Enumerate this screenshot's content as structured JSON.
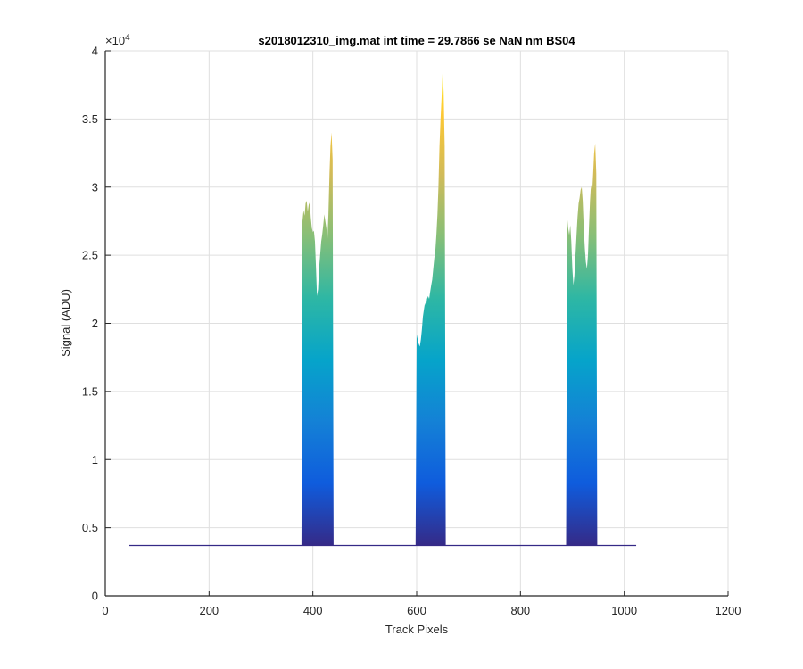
{
  "chart_data": {
    "type": "area",
    "title": "s2018012310_img.mat int time = 29.7866 se  NaN nm BS04",
    "xlabel": "Track Pixels",
    "ylabel": "Signal (ADU)",
    "xlim": [
      0,
      1200
    ],
    "ylim": [
      0,
      40000
    ],
    "x_ticks": [
      0,
      200,
      400,
      600,
      800,
      1000,
      1200
    ],
    "x_tick_labels": [
      "0",
      "200",
      "400",
      "600",
      "800",
      "1000",
      "1200"
    ],
    "y_ticks": [
      0,
      5000,
      10000,
      15000,
      20000,
      25000,
      30000,
      35000,
      40000
    ],
    "y_tick_labels": [
      "0",
      "0.5",
      "1",
      "1.5",
      "2",
      "2.5",
      "3",
      "3.5",
      "4"
    ],
    "y_exponent_label": "×10",
    "y_exponent_power": "4",
    "grid": true,
    "colormap": [
      "#352a87",
      "#0f5cdd",
      "#1481d6",
      "#06a4ca",
      "#2eb7a4",
      "#87bf77",
      "#d1bb59",
      "#fec832",
      "#f9fb0e"
    ],
    "baseline": 3700,
    "x_end": 1023,
    "peaks": [
      {
        "x": [
          378,
          380,
          382,
          384,
          386,
          388,
          390,
          392,
          394,
          396,
          398,
          400,
          402,
          404,
          406,
          408,
          410,
          412,
          414,
          416,
          418,
          420,
          422,
          424,
          426,
          428,
          430,
          432,
          434,
          436,
          438,
          440
        ],
        "y": [
          3700,
          27500,
          28300,
          27900,
          28800,
          29000,
          28200,
          28700,
          28900,
          27800,
          27000,
          26700,
          26800,
          26000,
          24000,
          22000,
          22500,
          24000,
          25000,
          26000,
          26500,
          27200,
          28000,
          27500,
          27000,
          26200,
          28000,
          31000,
          33000,
          34000,
          32000,
          3700
        ]
      },
      {
        "x": [
          598,
          600,
          602,
          604,
          606,
          608,
          610,
          612,
          614,
          616,
          618,
          620,
          622,
          624,
          626,
          628,
          630,
          632,
          634,
          636,
          638,
          640,
          642,
          644,
          646,
          648,
          650,
          652,
          654,
          656
        ],
        "y": [
          3700,
          19200,
          18800,
          18500,
          18300,
          18800,
          19500,
          20500,
          21000,
          21500,
          21200,
          21800,
          22000,
          21800,
          22300,
          22800,
          23200,
          24000,
          24800,
          25300,
          26500,
          28000,
          30000,
          33000,
          35000,
          36500,
          38500,
          37000,
          33000,
          3700
        ]
      },
      {
        "x": [
          888,
          890,
          892,
          894,
          896,
          898,
          900,
          902,
          904,
          906,
          908,
          910,
          912,
          914,
          916,
          918,
          920,
          922,
          924,
          926,
          928,
          930,
          932,
          934,
          936,
          938,
          940,
          942,
          944,
          946,
          948
        ],
        "y": [
          3700,
          27800,
          27000,
          26500,
          27200,
          26000,
          24000,
          22800,
          23500,
          25000,
          26500,
          27800,
          28800,
          29200,
          29800,
          30000,
          29000,
          27000,
          25500,
          24500,
          24000,
          25000,
          27000,
          29000,
          30200,
          29500,
          31000,
          32500,
          33200,
          31000,
          3700
        ]
      }
    ]
  }
}
